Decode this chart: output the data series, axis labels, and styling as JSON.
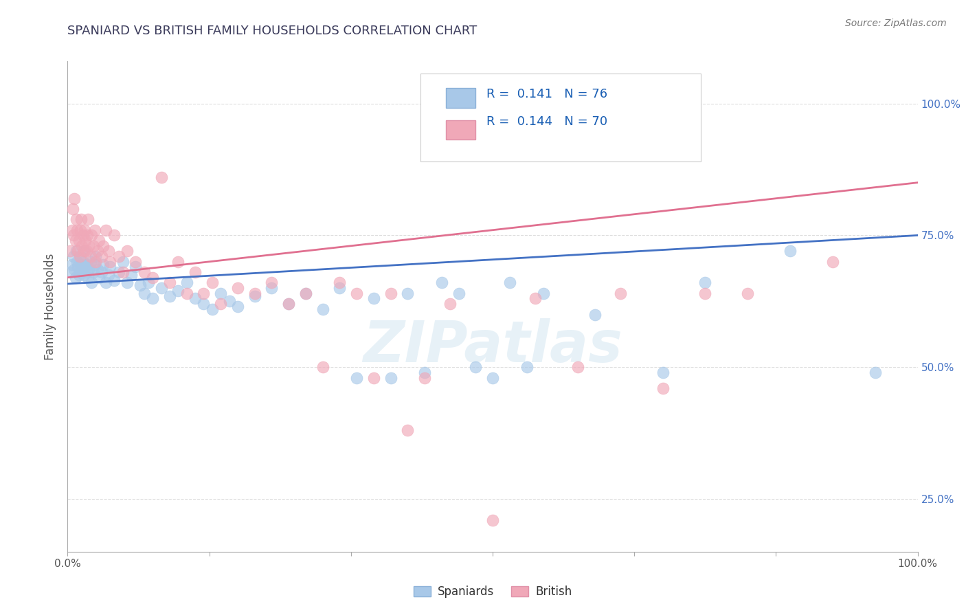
{
  "title": "SPANIARD VS BRITISH FAMILY HOUSEHOLDS CORRELATION CHART",
  "source_text": "Source: ZipAtlas.com",
  "ylabel": "Family Households",
  "spaniards_color": "#a8c8e8",
  "british_color": "#f0a8b8",
  "spaniards_R": 0.141,
  "spaniards_N": 76,
  "british_R": 0.144,
  "british_N": 70,
  "xlim": [
    0.0,
    1.0
  ],
  "ylim": [
    0.15,
    1.08
  ],
  "yticks": [
    0.25,
    0.5,
    0.75,
    1.0
  ],
  "ytick_labels": [
    "25.0%",
    "50.0%",
    "75.0%",
    "100.0%"
  ],
  "background_color": "#ffffff",
  "watermark_text": "ZIPatlas",
  "title_color": "#3a3a5a",
  "axis_color": "#aaaaaa",
  "grid_color": "#dddddd",
  "spaniards_line_color": "#4472c4",
  "british_line_color": "#e07090",
  "legend_text_color": "#1a5fb4",
  "spaniards_points": [
    [
      0.003,
      0.68
    ],
    [
      0.005,
      0.695
    ],
    [
      0.007,
      0.71
    ],
    [
      0.008,
      0.685
    ],
    [
      0.009,
      0.67
    ],
    [
      0.01,
      0.72
    ],
    [
      0.011,
      0.7
    ],
    [
      0.012,
      0.69
    ],
    [
      0.013,
      0.675
    ],
    [
      0.014,
      0.68
    ],
    [
      0.015,
      0.71
    ],
    [
      0.016,
      0.695
    ],
    [
      0.017,
      0.685
    ],
    [
      0.018,
      0.7
    ],
    [
      0.019,
      0.675
    ],
    [
      0.02,
      0.72
    ],
    [
      0.021,
      0.69
    ],
    [
      0.022,
      0.68
    ],
    [
      0.023,
      0.695
    ],
    [
      0.024,
      0.67
    ],
    [
      0.025,
      0.685
    ],
    [
      0.027,
      0.7
    ],
    [
      0.028,
      0.66
    ],
    [
      0.03,
      0.68
    ],
    [
      0.032,
      0.695
    ],
    [
      0.033,
      0.71
    ],
    [
      0.035,
      0.685
    ],
    [
      0.037,
      0.67
    ],
    [
      0.04,
      0.68
    ],
    [
      0.042,
      0.695
    ],
    [
      0.045,
      0.66
    ],
    [
      0.048,
      0.675
    ],
    [
      0.05,
      0.69
    ],
    [
      0.055,
      0.665
    ],
    [
      0.06,
      0.68
    ],
    [
      0.065,
      0.7
    ],
    [
      0.07,
      0.66
    ],
    [
      0.075,
      0.675
    ],
    [
      0.08,
      0.69
    ],
    [
      0.085,
      0.655
    ],
    [
      0.09,
      0.64
    ],
    [
      0.095,
      0.66
    ],
    [
      0.1,
      0.63
    ],
    [
      0.11,
      0.65
    ],
    [
      0.12,
      0.635
    ],
    [
      0.13,
      0.645
    ],
    [
      0.14,
      0.66
    ],
    [
      0.15,
      0.63
    ],
    [
      0.16,
      0.62
    ],
    [
      0.17,
      0.61
    ],
    [
      0.18,
      0.64
    ],
    [
      0.19,
      0.625
    ],
    [
      0.2,
      0.615
    ],
    [
      0.22,
      0.635
    ],
    [
      0.24,
      0.65
    ],
    [
      0.26,
      0.62
    ],
    [
      0.28,
      0.64
    ],
    [
      0.3,
      0.61
    ],
    [
      0.32,
      0.65
    ],
    [
      0.34,
      0.48
    ],
    [
      0.36,
      0.63
    ],
    [
      0.38,
      0.48
    ],
    [
      0.4,
      0.64
    ],
    [
      0.42,
      0.49
    ],
    [
      0.44,
      0.66
    ],
    [
      0.46,
      0.64
    ],
    [
      0.48,
      0.5
    ],
    [
      0.5,
      0.48
    ],
    [
      0.52,
      0.66
    ],
    [
      0.54,
      0.5
    ],
    [
      0.56,
      0.64
    ],
    [
      0.62,
      0.6
    ],
    [
      0.7,
      0.49
    ],
    [
      0.75,
      0.66
    ],
    [
      0.85,
      0.72
    ],
    [
      0.95,
      0.49
    ]
  ],
  "british_points": [
    [
      0.003,
      0.72
    ],
    [
      0.005,
      0.76
    ],
    [
      0.006,
      0.8
    ],
    [
      0.007,
      0.75
    ],
    [
      0.008,
      0.82
    ],
    [
      0.009,
      0.74
    ],
    [
      0.01,
      0.78
    ],
    [
      0.011,
      0.76
    ],
    [
      0.012,
      0.72
    ],
    [
      0.013,
      0.74
    ],
    [
      0.014,
      0.71
    ],
    [
      0.015,
      0.76
    ],
    [
      0.016,
      0.78
    ],
    [
      0.017,
      0.73
    ],
    [
      0.018,
      0.75
    ],
    [
      0.019,
      0.72
    ],
    [
      0.02,
      0.76
    ],
    [
      0.021,
      0.74
    ],
    [
      0.022,
      0.72
    ],
    [
      0.023,
      0.75
    ],
    [
      0.024,
      0.78
    ],
    [
      0.025,
      0.73
    ],
    [
      0.027,
      0.71
    ],
    [
      0.028,
      0.75
    ],
    [
      0.03,
      0.73
    ],
    [
      0.032,
      0.76
    ],
    [
      0.033,
      0.7
    ],
    [
      0.035,
      0.72
    ],
    [
      0.037,
      0.74
    ],
    [
      0.04,
      0.71
    ],
    [
      0.042,
      0.73
    ],
    [
      0.045,
      0.76
    ],
    [
      0.048,
      0.72
    ],
    [
      0.05,
      0.7
    ],
    [
      0.055,
      0.75
    ],
    [
      0.06,
      0.71
    ],
    [
      0.065,
      0.68
    ],
    [
      0.07,
      0.72
    ],
    [
      0.08,
      0.7
    ],
    [
      0.09,
      0.68
    ],
    [
      0.1,
      0.67
    ],
    [
      0.11,
      0.86
    ],
    [
      0.12,
      0.66
    ],
    [
      0.13,
      0.7
    ],
    [
      0.14,
      0.64
    ],
    [
      0.15,
      0.68
    ],
    [
      0.16,
      0.64
    ],
    [
      0.17,
      0.66
    ],
    [
      0.18,
      0.62
    ],
    [
      0.2,
      0.65
    ],
    [
      0.22,
      0.64
    ],
    [
      0.24,
      0.66
    ],
    [
      0.26,
      0.62
    ],
    [
      0.28,
      0.64
    ],
    [
      0.3,
      0.5
    ],
    [
      0.32,
      0.66
    ],
    [
      0.34,
      0.64
    ],
    [
      0.36,
      0.48
    ],
    [
      0.38,
      0.64
    ],
    [
      0.4,
      0.38
    ],
    [
      0.42,
      0.48
    ],
    [
      0.45,
      0.62
    ],
    [
      0.5,
      0.21
    ],
    [
      0.55,
      0.63
    ],
    [
      0.6,
      0.5
    ],
    [
      0.65,
      0.64
    ],
    [
      0.7,
      0.46
    ],
    [
      0.75,
      0.64
    ],
    [
      0.8,
      0.64
    ],
    [
      0.9,
      0.7
    ]
  ],
  "trend_sp_start": 0.658,
  "trend_sp_end": 0.75,
  "trend_br_start": 0.67,
  "trend_br_end": 0.85
}
